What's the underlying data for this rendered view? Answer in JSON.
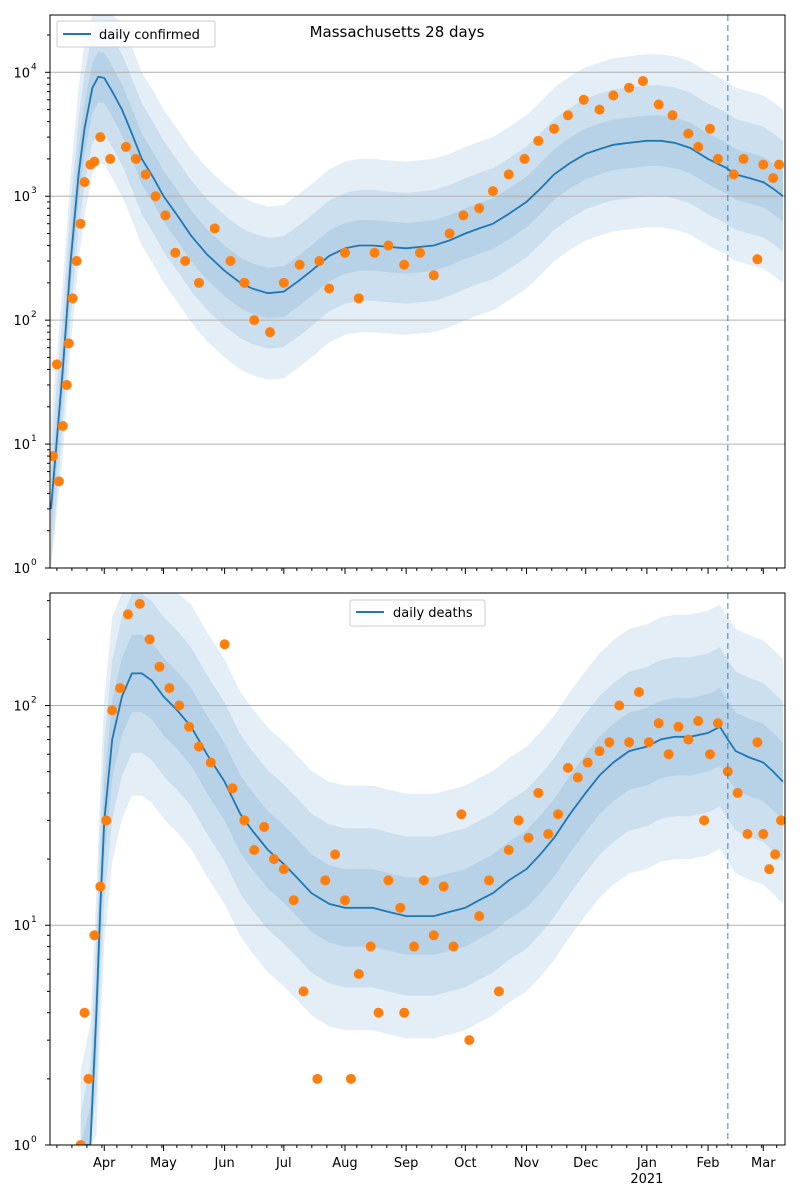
{
  "chart_data": [
    {
      "type": "line",
      "title": "Massachusetts 28 days",
      "yscale": "log",
      "ylim": [
        1,
        29000
      ],
      "yticks": [
        {
          "v": 1,
          "label": "10",
          "exp": "0"
        },
        {
          "v": 10,
          "label": "10",
          "exp": "1"
        },
        {
          "v": 100,
          "label": "10",
          "exp": "2"
        },
        {
          "v": 1000,
          "label": "10",
          "exp": "3"
        },
        {
          "v": 10000,
          "label": "10",
          "exp": "4"
        }
      ],
      "x_unit": "days since 2020-03-01",
      "xlim": [
        3.5,
        376
      ],
      "grid": true,
      "legend": {
        "label": "daily confirmed",
        "placement": "top-left"
      },
      "forecast_start_day": 347,
      "band_factors": [
        1.6,
        2.8,
        5
      ],
      "median": [
        [
          4,
          3
        ],
        [
          10,
          40
        ],
        [
          14,
          300
        ],
        [
          18,
          1500
        ],
        [
          21,
          3500
        ],
        [
          25,
          7500
        ],
        [
          28,
          9200
        ],
        [
          31,
          9000
        ],
        [
          35,
          7000
        ],
        [
          40,
          5000
        ],
        [
          45,
          3200
        ],
        [
          50,
          2000
        ],
        [
          56,
          1400
        ],
        [
          61,
          1000
        ],
        [
          68,
          700
        ],
        [
          75,
          480
        ],
        [
          83,
          340
        ],
        [
          92,
          250
        ],
        [
          100,
          200
        ],
        [
          106,
          180
        ],
        [
          114,
          165
        ],
        [
          122,
          170
        ],
        [
          130,
          210
        ],
        [
          136,
          250
        ],
        [
          145,
          330
        ],
        [
          153,
          380
        ],
        [
          160,
          400
        ],
        [
          167,
          400
        ],
        [
          175,
          390
        ],
        [
          184,
          380
        ],
        [
          191,
          390
        ],
        [
          198,
          400
        ],
        [
          206,
          440
        ],
        [
          214,
          500
        ],
        [
          221,
          550
        ],
        [
          228,
          600
        ],
        [
          236,
          720
        ],
        [
          245,
          900
        ],
        [
          252,
          1150
        ],
        [
          259,
          1500
        ],
        [
          267,
          1850
        ],
        [
          275,
          2200
        ],
        [
          282,
          2400
        ],
        [
          289,
          2600
        ],
        [
          297,
          2700
        ],
        [
          306,
          2800
        ],
        [
          313,
          2800
        ],
        [
          320,
          2700
        ],
        [
          328,
          2450
        ],
        [
          337,
          2000
        ],
        [
          346,
          1700
        ],
        [
          351,
          1500
        ],
        [
          358,
          1400
        ],
        [
          365,
          1300
        ],
        [
          370,
          1150
        ],
        [
          375,
          1000
        ]
      ],
      "observed": [
        [
          5,
          8
        ],
        [
          7,
          44
        ],
        [
          8,
          5
        ],
        [
          10,
          14
        ],
        [
          12,
          30
        ],
        [
          13,
          65
        ],
        [
          15,
          150
        ],
        [
          17,
          300
        ],
        [
          19,
          600
        ],
        [
          21,
          1300
        ],
        [
          24,
          1800
        ],
        [
          26,
          1900
        ],
        [
          29,
          3000
        ],
        [
          34,
          2000
        ],
        [
          42,
          2500
        ],
        [
          47,
          2000
        ],
        [
          52,
          1500
        ],
        [
          57,
          1000
        ],
        [
          62,
          700
        ],
        [
          67,
          350
        ],
        [
          72,
          300
        ],
        [
          79,
          200
        ],
        [
          87,
          550
        ],
        [
          95,
          300
        ],
        [
          102,
          200
        ],
        [
          107,
          100
        ],
        [
          115,
          80
        ],
        [
          122,
          200
        ],
        [
          130,
          280
        ],
        [
          140,
          300
        ],
        [
          145,
          180
        ],
        [
          153,
          350
        ],
        [
          160,
          150
        ],
        [
          168,
          350
        ],
        [
          175,
          400
        ],
        [
          183,
          280
        ],
        [
          191,
          350
        ],
        [
          198,
          230
        ],
        [
          206,
          500
        ],
        [
          213,
          700
        ],
        [
          221,
          800
        ],
        [
          228,
          1100
        ],
        [
          236,
          1500
        ],
        [
          244,
          2000
        ],
        [
          251,
          2800
        ],
        [
          259,
          3500
        ],
        [
          266,
          4500
        ],
        [
          274,
          6000
        ],
        [
          282,
          5000
        ],
        [
          289,
          6500
        ],
        [
          297,
          7500
        ],
        [
          304,
          8500
        ],
        [
          312,
          5500
        ],
        [
          319,
          4500
        ],
        [
          327,
          3200
        ],
        [
          332,
          2500
        ],
        [
          338,
          3500
        ],
        [
          342,
          2000
        ],
        [
          350,
          1500
        ],
        [
          355,
          2000
        ],
        [
          362,
          310
        ],
        [
          365,
          1800
        ],
        [
          370,
          1400
        ],
        [
          373,
          1800
        ]
      ]
    },
    {
      "type": "line",
      "title": "",
      "yscale": "log",
      "ylim": [
        1,
        325
      ],
      "yticks": [
        {
          "v": 1,
          "label": "10",
          "exp": "0"
        },
        {
          "v": 10,
          "label": "10",
          "exp": "1"
        },
        {
          "v": 100,
          "label": "10",
          "exp": "2"
        }
      ],
      "x_unit": "days since 2020-03-01",
      "xlim": [
        3.5,
        376
      ],
      "xticks": [
        {
          "d": 31,
          "label": "Apr"
        },
        {
          "d": 61,
          "label": "May"
        },
        {
          "d": 92,
          "label": "Jun"
        },
        {
          "d": 122,
          "label": "Jul"
        },
        {
          "d": 153,
          "label": "Aug"
        },
        {
          "d": 184,
          "label": "Sep"
        },
        {
          "d": 214,
          "label": "Oct"
        },
        {
          "d": 245,
          "label": "Nov"
        },
        {
          "d": 275,
          "label": "Dec"
        },
        {
          "d": 306,
          "label": "Jan",
          "sub": "2021"
        },
        {
          "d": 337,
          "label": "Feb"
        },
        {
          "d": 365,
          "label": "Mar"
        }
      ],
      "grid": true,
      "legend": {
        "label": "daily deaths",
        "placement": "top-center"
      },
      "forecast_start_day": 347,
      "band_factors": [
        1.5,
        2.3,
        3.6
      ],
      "median": [
        [
          19,
          0.6
        ],
        [
          24,
          1
        ],
        [
          27,
          4
        ],
        [
          29,
          12
        ],
        [
          31,
          30
        ],
        [
          35,
          70
        ],
        [
          40,
          110
        ],
        [
          45,
          140
        ],
        [
          50,
          140
        ],
        [
          55,
          130
        ],
        [
          61,
          110
        ],
        [
          68,
          95
        ],
        [
          75,
          80
        ],
        [
          83,
          60
        ],
        [
          92,
          45
        ],
        [
          100,
          32
        ],
        [
          106,
          27
        ],
        [
          114,
          22
        ],
        [
          122,
          19
        ],
        [
          130,
          16
        ],
        [
          136,
          14
        ],
        [
          145,
          12.5
        ],
        [
          153,
          12
        ],
        [
          160,
          12
        ],
        [
          167,
          12
        ],
        [
          175,
          11.5
        ],
        [
          184,
          11
        ],
        [
          191,
          11
        ],
        [
          198,
          11
        ],
        [
          206,
          11.5
        ],
        [
          214,
          12
        ],
        [
          221,
          13
        ],
        [
          228,
          14
        ],
        [
          236,
          16
        ],
        [
          245,
          18
        ],
        [
          252,
          21
        ],
        [
          259,
          25
        ],
        [
          267,
          32
        ],
        [
          275,
          40
        ],
        [
          282,
          48
        ],
        [
          289,
          55
        ],
        [
          297,
          62
        ],
        [
          306,
          65
        ],
        [
          313,
          70
        ],
        [
          320,
          72
        ],
        [
          328,
          72
        ],
        [
          337,
          75
        ],
        [
          343,
          80
        ],
        [
          347,
          70
        ],
        [
          351,
          62
        ],
        [
          358,
          58
        ],
        [
          365,
          55
        ],
        [
          370,
          50
        ],
        [
          375,
          45
        ]
      ],
      "observed": [
        [
          19,
          1
        ],
        [
          21,
          4
        ],
        [
          23,
          2
        ],
        [
          26,
          9
        ],
        [
          29,
          15
        ],
        [
          32,
          30
        ],
        [
          35,
          95
        ],
        [
          39,
          120
        ],
        [
          43,
          260
        ],
        [
          49,
          290
        ],
        [
          54,
          200
        ],
        [
          59,
          150
        ],
        [
          64,
          120
        ],
        [
          69,
          100
        ],
        [
          74,
          80
        ],
        [
          79,
          65
        ],
        [
          85,
          55
        ],
        [
          92,
          190
        ],
        [
          96,
          42
        ],
        [
          102,
          30
        ],
        [
          107,
          22
        ],
        [
          112,
          28
        ],
        [
          117,
          20
        ],
        [
          122,
          18
        ],
        [
          127,
          13
        ],
        [
          132,
          5
        ],
        [
          139,
          2
        ],
        [
          143,
          16
        ],
        [
          148,
          21
        ],
        [
          153,
          13
        ],
        [
          156,
          2
        ],
        [
          160,
          6
        ],
        [
          166,
          8
        ],
        [
          170,
          4
        ],
        [
          175,
          16
        ],
        [
          181,
          12
        ],
        [
          183,
          4
        ],
        [
          188,
          8
        ],
        [
          193,
          16
        ],
        [
          198,
          9
        ],
        [
          203,
          15
        ],
        [
          208,
          8
        ],
        [
          212,
          32
        ],
        [
          216,
          3
        ],
        [
          221,
          11
        ],
        [
          226,
          16
        ],
        [
          231,
          5
        ],
        [
          236,
          22
        ],
        [
          241,
          30
        ],
        [
          246,
          25
        ],
        [
          251,
          40
        ],
        [
          256,
          26
        ],
        [
          261,
          32
        ],
        [
          266,
          52
        ],
        [
          271,
          47
        ],
        [
          276,
          55
        ],
        [
          282,
          62
        ],
        [
          287,
          68
        ],
        [
          292,
          100
        ],
        [
          297,
          68
        ],
        [
          302,
          115
        ],
        [
          307,
          68
        ],
        [
          312,
          83
        ],
        [
          317,
          60
        ],
        [
          322,
          80
        ],
        [
          327,
          70
        ],
        [
          332,
          85
        ],
        [
          335,
          30
        ],
        [
          338,
          60
        ],
        [
          342,
          83
        ],
        [
          347,
          50
        ],
        [
          352,
          40
        ],
        [
          357,
          26
        ],
        [
          362,
          68
        ],
        [
          365,
          26
        ],
        [
          368,
          18
        ],
        [
          371,
          21
        ],
        [
          374,
          30
        ]
      ]
    }
  ]
}
